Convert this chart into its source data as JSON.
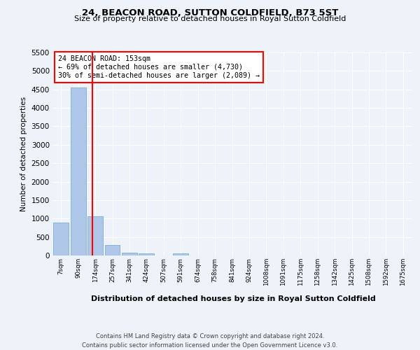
{
  "title": "24, BEACON ROAD, SUTTON COLDFIELD, B73 5ST",
  "subtitle": "Size of property relative to detached houses in Royal Sutton Coldfield",
  "xlabel": "Distribution of detached houses by size in Royal Sutton Coldfield",
  "ylabel": "Number of detached properties",
  "bin_labels": [
    "7sqm",
    "90sqm",
    "174sqm",
    "257sqm",
    "341sqm",
    "424sqm",
    "507sqm",
    "591sqm",
    "674sqm",
    "758sqm",
    "841sqm",
    "924sqm",
    "1008sqm",
    "1091sqm",
    "1175sqm",
    "1258sqm",
    "1342sqm",
    "1425sqm",
    "1508sqm",
    "1592sqm",
    "1675sqm"
  ],
  "bin_values": [
    900,
    4550,
    1060,
    290,
    75,
    55,
    0,
    55,
    0,
    0,
    0,
    0,
    0,
    0,
    0,
    0,
    0,
    0,
    0,
    0,
    0
  ],
  "bar_color": "#aec6e8",
  "bar_edge_color": "#7aafd4",
  "vline_x": 1.85,
  "vline_color": "red",
  "annotation_title": "24 BEACON ROAD: 153sqm",
  "annotation_line1": "← 69% of detached houses are smaller (4,730)",
  "annotation_line2": "30% of semi-detached houses are larger (2,089) →",
  "annotation_box_color": "white",
  "annotation_box_edge_color": "red",
  "ylim": [
    0,
    5500
  ],
  "yticks": [
    0,
    500,
    1000,
    1500,
    2000,
    2500,
    3000,
    3500,
    4000,
    4500,
    5000,
    5500
  ],
  "footer_line1": "Contains HM Land Registry data © Crown copyright and database right 2024.",
  "footer_line2": "Contains public sector information licensed under the Open Government Licence v3.0.",
  "bg_color": "#eef2f9",
  "grid_color": "white"
}
